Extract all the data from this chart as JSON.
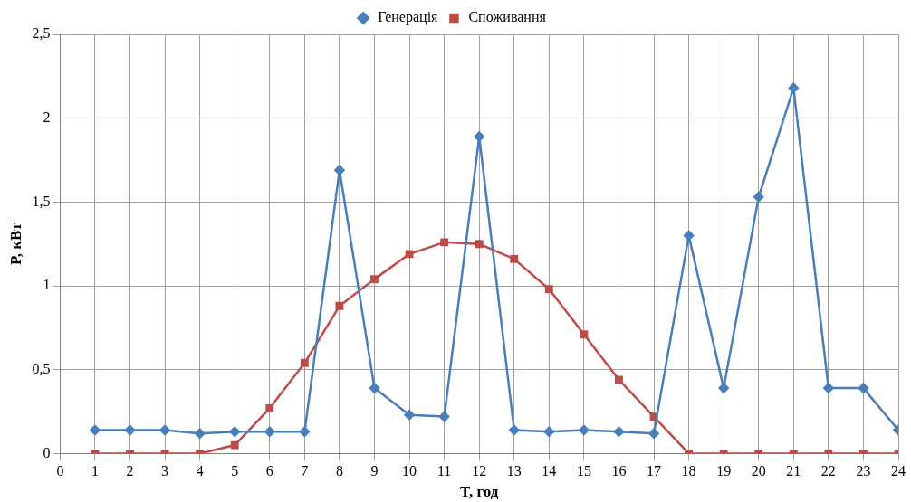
{
  "chart_data": {
    "type": "line",
    "xlabel": "T, год",
    "ylabel": "P, кВт",
    "xlim": [
      0,
      24
    ],
    "xticks": [
      0,
      1,
      2,
      3,
      4,
      5,
      6,
      7,
      8,
      9,
      10,
      11,
      12,
      13,
      14,
      15,
      16,
      17,
      18,
      19,
      20,
      21,
      22,
      23,
      24
    ],
    "ylim": [
      0,
      2.5
    ],
    "yticks": [
      0,
      {
        "value": 0.5,
        "label": "0,5"
      },
      1,
      {
        "value": 1.5,
        "label": "1,5"
      },
      2,
      {
        "value": 2.5,
        "label": "2,5"
      }
    ],
    "grid": true,
    "legend": "top",
    "line_style": "solid",
    "series": [
      {
        "name": "Генерація",
        "color": "#4a7ebb",
        "marker": "diamond",
        "x": [
          1,
          2,
          3,
          4,
          5,
          6,
          7,
          8,
          9,
          10,
          11,
          12,
          13,
          14,
          15,
          16,
          17,
          18,
          19,
          20,
          21,
          22,
          23,
          24
        ],
        "values": [
          0.14,
          0.14,
          0.14,
          0.12,
          0.13,
          0.13,
          0.13,
          1.69,
          0.39,
          0.23,
          0.22,
          1.89,
          0.14,
          0.13,
          0.14,
          0.13,
          0.12,
          1.3,
          0.39,
          1.53,
          2.18,
          0.39,
          0.39,
          0.14
        ]
      },
      {
        "name": "Споживання",
        "color": "#be4b48",
        "marker": "square",
        "x": [
          1,
          2,
          3,
          4,
          5,
          6,
          7,
          8,
          9,
          10,
          11,
          12,
          13,
          14,
          15,
          16,
          17,
          18,
          19,
          20,
          21,
          22,
          23,
          24
        ],
        "values": [
          0,
          0,
          0,
          0,
          0.05,
          0.27,
          0.54,
          0.88,
          1.04,
          1.19,
          1.26,
          1.25,
          1.16,
          0.98,
          0.71,
          0.44,
          0.22,
          0,
          0,
          0,
          0,
          0,
          0,
          0
        ]
      }
    ]
  }
}
